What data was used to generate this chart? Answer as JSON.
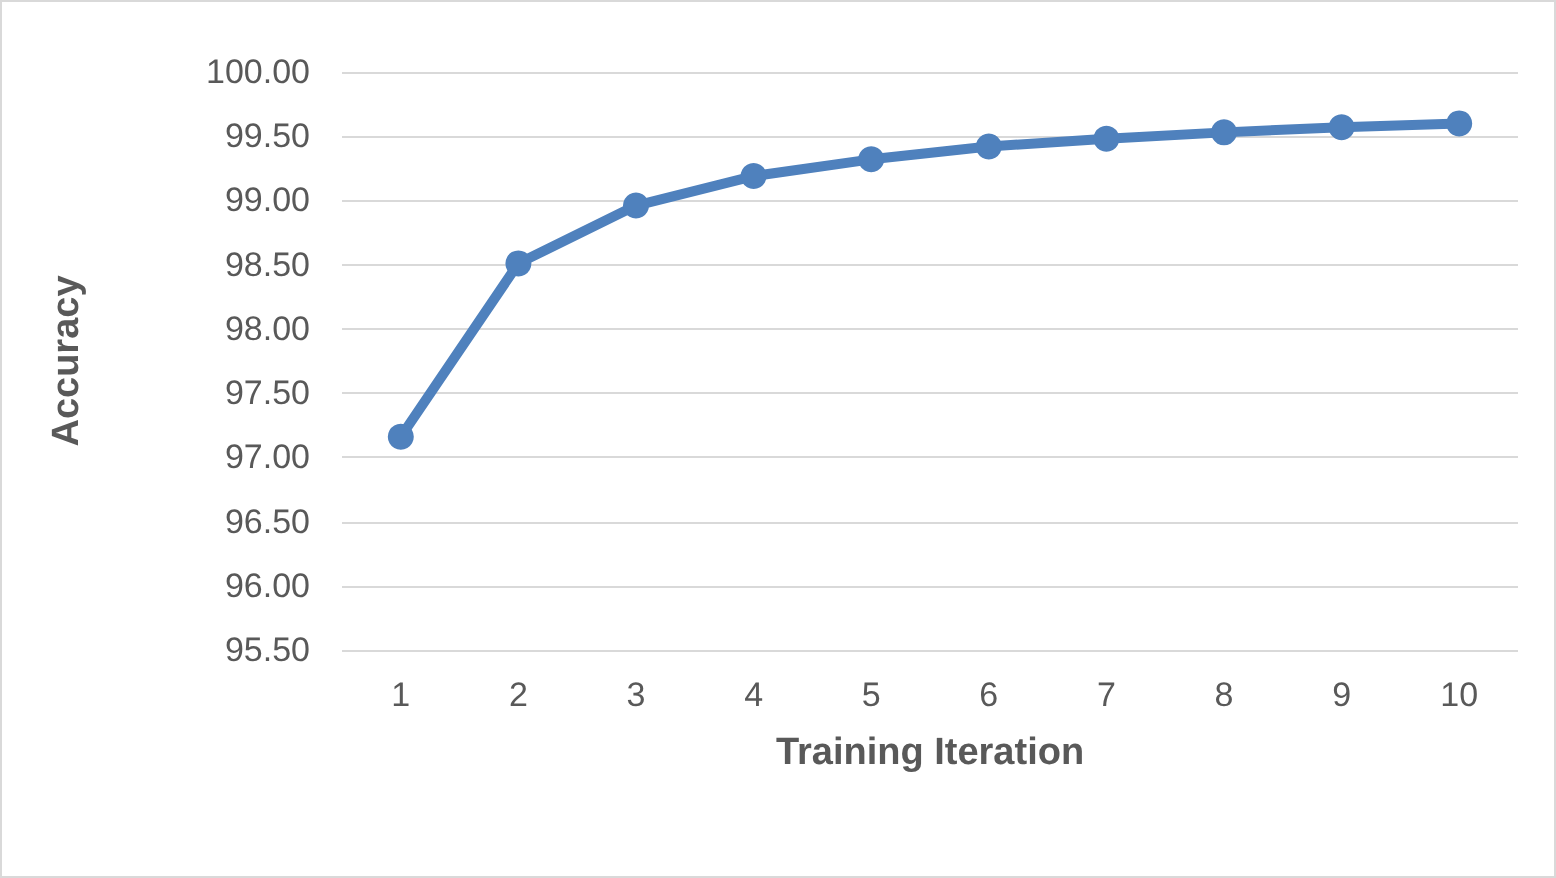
{
  "chart_data": {
    "type": "line",
    "xlabel": "Training Iteration",
    "ylabel": "Accuracy",
    "categories": [
      "1",
      "2",
      "3",
      "4",
      "5",
      "6",
      "7",
      "8",
      "9",
      "10"
    ],
    "series": [
      {
        "color": "#4f81bd",
        "values": [
          97.16,
          98.51,
          98.96,
          99.19,
          99.32,
          99.42,
          99.48,
          99.53,
          99.57,
          99.6
        ]
      }
    ],
    "ylim": [
      95.5,
      100
    ],
    "yticks": [
      {
        "value": 95.5,
        "label": "95.50"
      },
      {
        "value": 96,
        "label": "96.00"
      },
      {
        "value": 96.5,
        "label": "96.50"
      },
      {
        "value": 97,
        "label": "97.00"
      },
      {
        "value": 97.5,
        "label": "97.50"
      },
      {
        "value": 98,
        "label": "98.00"
      },
      {
        "value": 98.5,
        "label": "98.50"
      },
      {
        "value": 99,
        "label": "99.00"
      },
      {
        "value": 99.5,
        "label": "99.50"
      },
      {
        "value": 100,
        "label": "100.00"
      }
    ],
    "grid": "y",
    "marker": "circle",
    "line_style": "solid"
  }
}
